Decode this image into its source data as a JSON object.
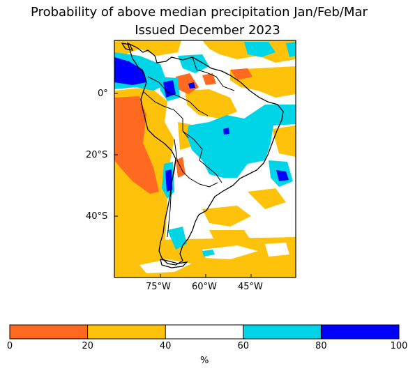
{
  "title_line1": "Probability of above median precipitation Jan/Feb/Mar",
  "title_line2": "Issued December 2023",
  "map": {
    "lat_ticks": [
      "0°",
      "20°S",
      "40°S"
    ],
    "lon_ticks": [
      "75°W",
      "60°W",
      "45°W"
    ]
  },
  "colorbar": {
    "ticks": [
      "0",
      "20",
      "40",
      "60",
      "80",
      "100"
    ],
    "unit_label": "%",
    "bins": [
      {
        "from": 0,
        "to": 20,
        "color": "#ff6a20"
      },
      {
        "from": 20,
        "to": 40,
        "color": "#ffc20a"
      },
      {
        "from": 40,
        "to": 60,
        "color": "#ffffff"
      },
      {
        "from": 60,
        "to": 80,
        "color": "#00d5e8"
      },
      {
        "from": 80,
        "to": 100,
        "color": "#0000ff"
      }
    ]
  }
}
